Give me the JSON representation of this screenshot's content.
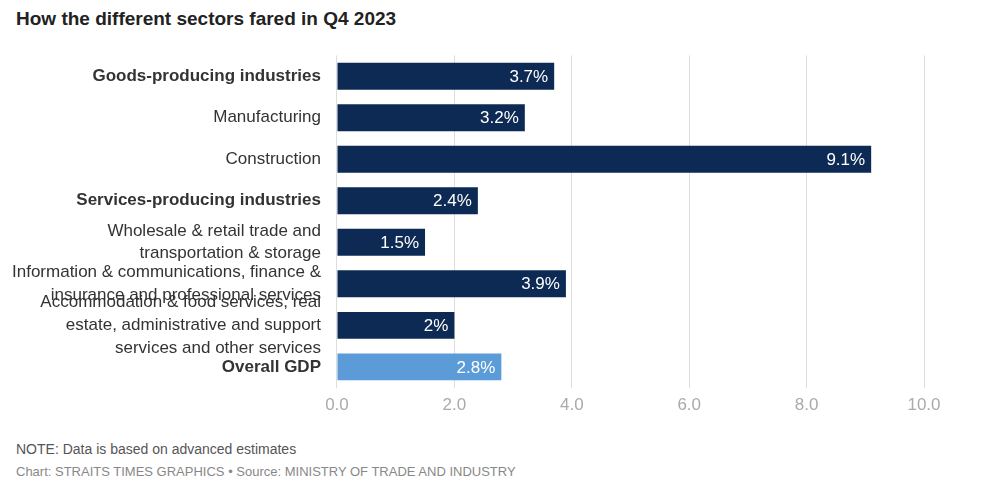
{
  "chart_data": {
    "type": "bar",
    "title": "How the different sectors fared in Q4 2023",
    "note": "NOTE: Data is based on advanced estimates",
    "credit": "Chart: STRAITS TIMES GRAPHICS • Source: MINISTRY OF TRADE AND INDUSTRY",
    "orientation": "horizontal",
    "categories": [
      "Goods-producing industries",
      "Manufacturing",
      "Construction",
      "Services-producing industries",
      [
        "Wholesale & retail trade and",
        "transportation & storage"
      ],
      [
        "Information & communications, finance &",
        "insurance and professional services"
      ],
      [
        "Accommodation & food services, real",
        "estate, administrative and support",
        "services and other services"
      ],
      "Overall GDP"
    ],
    "values": [
      3.7,
      3.2,
      9.1,
      2.4,
      1.5,
      3.9,
      2,
      2.8
    ],
    "value_labels": [
      "3.7%",
      "3.2%",
      "9.1%",
      "2.4%",
      "1.5%",
      "3.9%",
      "2%",
      "2.8%"
    ],
    "colors": [
      "#0c2a54",
      "#0c2a54",
      "#0c2a54",
      "#0c2a54",
      "#0c2a54",
      "#0c2a54",
      "#0c2a54",
      "#5b9bd8"
    ],
    "xlim": [
      0,
      10
    ],
    "xticks": [
      {
        "value": 0,
        "label": "0.0"
      },
      {
        "value": 2,
        "label": "2.0"
      },
      {
        "value": 4,
        "label": "4.0"
      },
      {
        "value": 6,
        "label": "6.0"
      },
      {
        "value": 8,
        "label": "8.0"
      },
      {
        "value": 10,
        "label": "10.0"
      }
    ],
    "grid": true,
    "data_labels": true
  }
}
